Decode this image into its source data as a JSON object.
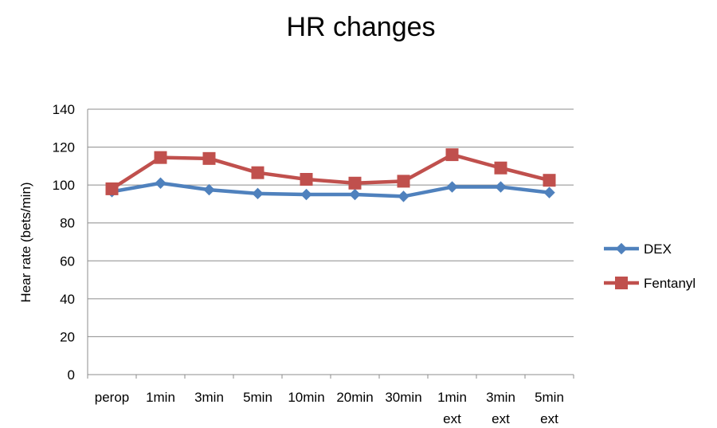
{
  "chart_data": {
    "type": "line",
    "title": "HR changes",
    "xlabel": "",
    "ylabel": "Hear rate (bets/min)",
    "ylim": [
      0,
      140
    ],
    "y_ticks": [
      0,
      20,
      40,
      60,
      80,
      100,
      120,
      140
    ],
    "grid": true,
    "legend_position": "right",
    "categories": [
      [
        "perop"
      ],
      [
        "1min"
      ],
      [
        "3min"
      ],
      [
        "5min"
      ],
      [
        "10min"
      ],
      [
        "20min"
      ],
      [
        "30min"
      ],
      [
        "1min",
        "ext"
      ],
      [
        "3min",
        "ext"
      ],
      [
        "5min",
        "ext"
      ]
    ],
    "series": [
      {
        "name": "DEX",
        "color": "#4F81BD",
        "marker": "diamond",
        "values": [
          96.5,
          101,
          97.5,
          95.5,
          95,
          95,
          94,
          99,
          99,
          96
        ]
      },
      {
        "name": "Fentanyl",
        "color": "#C0504D",
        "marker": "square",
        "values": [
          98,
          114.5,
          114,
          106.5,
          103,
          101,
          102,
          116,
          109,
          102.5
        ]
      }
    ]
  }
}
